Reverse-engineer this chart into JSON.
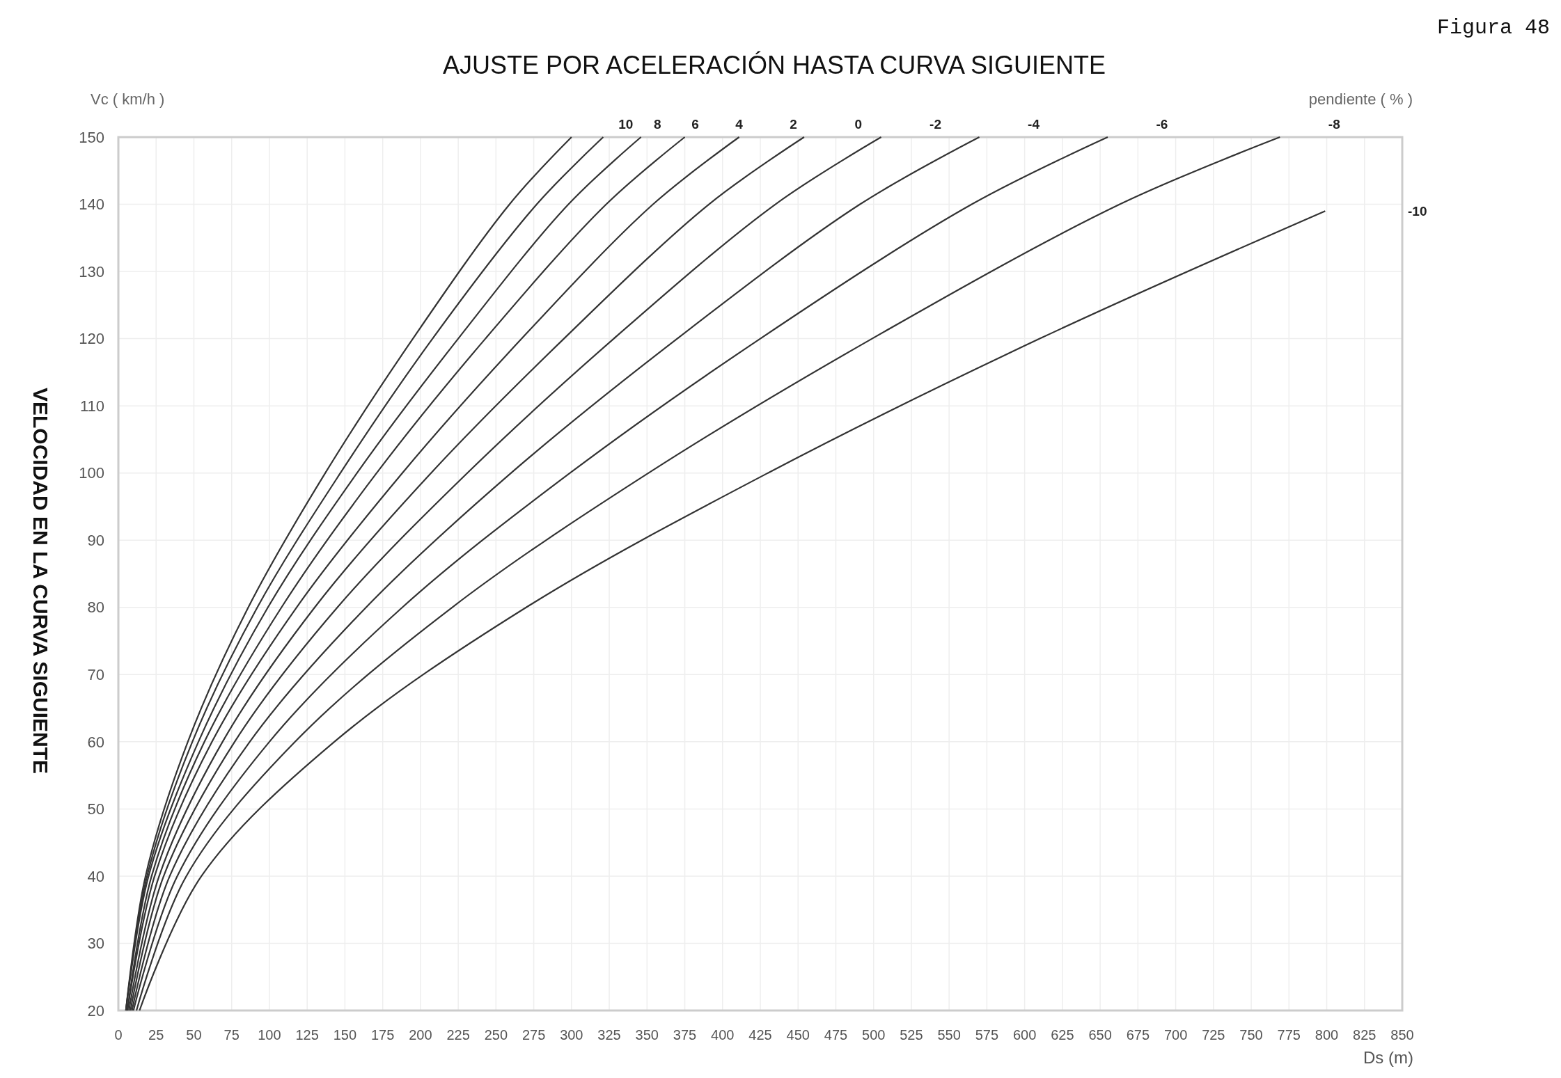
{
  "chart_data": {
    "type": "line",
    "title": "AJUSTE POR ACELERACIÓN HASTA CURVA SIGUIENTE",
    "xlabel": "Ds (m)",
    "ylabel": "VELOCIDAD EN LA CURVA SIGUIENTE",
    "legend_title": "pendiente ( % )",
    "annotations": [
      "Figura 48",
      "Vc ( km/h )"
    ],
    "xlim": [
      0,
      850
    ],
    "xticks": [
      0,
      25,
      50,
      75,
      100,
      125,
      150,
      175,
      200,
      225,
      250,
      275,
      300,
      325,
      350,
      375,
      400,
      425,
      450,
      475,
      500,
      525,
      550,
      575,
      600,
      625,
      650,
      675,
      700,
      725,
      750,
      775,
      800,
      825,
      850
    ],
    "ylim": [
      20,
      150
    ],
    "yticks": [
      20,
      30,
      40,
      50,
      60,
      70,
      80,
      90,
      100,
      110,
      120,
      130,
      140,
      150
    ],
    "grid": true,
    "marker": "none",
    "line_style": "solid",
    "series": [
      {
        "name": "10",
        "color": "#333333",
        "x": [
          5,
          18,
          46,
          86,
          137,
          195,
          259,
          300
        ],
        "values": [
          20,
          40,
          60,
          80,
          100,
          120,
          140,
          150
        ]
      },
      {
        "name": "8",
        "color": "#333333",
        "x": [
          5,
          19,
          49,
          92,
          147,
          208,
          277,
          321
        ],
        "values": [
          20,
          40,
          60,
          80,
          100,
          120,
          140,
          150
        ]
      },
      {
        "name": "6",
        "color": "#333333",
        "x": [
          5,
          20,
          53,
          99,
          158,
          225,
          298,
          346
        ],
        "values": [
          20,
          40,
          60,
          80,
          100,
          120,
          140,
          150
        ]
      },
      {
        "name": "4",
        "color": "#333333",
        "x": [
          6,
          22,
          57,
          108,
          171,
          243,
          323,
          375
        ],
        "values": [
          20,
          40,
          60,
          80,
          100,
          120,
          140,
          150
        ]
      },
      {
        "name": "2",
        "color": "#333333",
        "x": [
          6,
          24,
          62,
          118,
          188,
          267,
          354,
          411
        ],
        "values": [
          20,
          40,
          60,
          80,
          100,
          120,
          140,
          150
        ]
      },
      {
        "name": "0",
        "color": "#333333",
        "x": [
          7,
          27,
          69,
          130,
          207,
          295,
          391,
          454
        ],
        "values": [
          20,
          40,
          60,
          80,
          100,
          120,
          140,
          150
        ]
      },
      {
        "name": "-2",
        "color": "#333333",
        "x": [
          8,
          30,
          77,
          145,
          231,
          328,
          435,
          505
        ],
        "values": [
          20,
          40,
          60,
          80,
          100,
          120,
          140,
          150
        ]
      },
      {
        "name": "-4",
        "color": "#333333",
        "x": [
          9,
          34,
          87,
          164,
          260,
          370,
          491,
          570
        ],
        "values": [
          20,
          40,
          60,
          80,
          100,
          120,
          140,
          150
        ]
      },
      {
        "name": "-6",
        "color": "#333333",
        "x": [
          10,
          39,
          100,
          188,
          299,
          425,
          565,
          655
        ],
        "values": [
          20,
          40,
          60,
          80,
          100,
          120,
          140,
          150
        ]
      },
      {
        "name": "-8",
        "color": "#333333",
        "x": [
          12,
          45,
          117,
          221,
          351,
          499,
          663,
          769
        ],
        "values": [
          20,
          40,
          60,
          80,
          100,
          120,
          140,
          150
        ]
      },
      {
        "name": "-10",
        "color": "#333333",
        "x": [
          14,
          55,
          143,
          270,
          430,
          610,
          799
        ],
        "values": [
          20,
          40,
          60,
          80,
          100,
          120,
          139
        ]
      }
    ]
  }
}
